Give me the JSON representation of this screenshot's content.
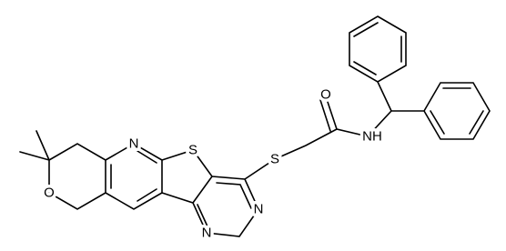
{
  "atoms": {
    "labels": [
      "N",
      "S",
      "S",
      "O",
      "NH",
      "O",
      "N",
      "N"
    ]
  }
}
